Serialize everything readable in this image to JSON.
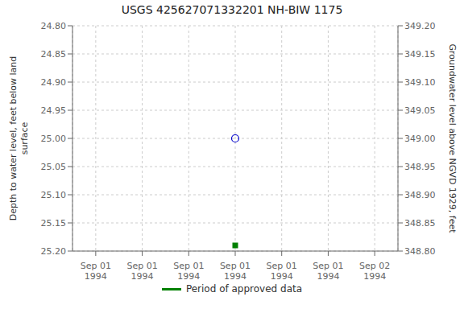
{
  "chart_data": {
    "type": "scatter",
    "title": "USGS 425627071332201 NH-BIW 1175",
    "y_label": "Depth to water level, feet below land\nsurface",
    "y2_label": "Groundwater level above NGVD 1929, feet",
    "categories": [
      "Sep 01\n1994",
      "Sep 01\n1994",
      "Sep 01\n1994",
      "Sep 01\n1994",
      "Sep 01\n1994",
      "Sep 01\n1994",
      "Sep 02\n1994"
    ],
    "xlim": [
      -0.5,
      6.5
    ],
    "ylim": [
      25.2,
      24.8
    ],
    "yticks": [
      {
        "value": 24.8,
        "label": "24.80"
      },
      24.85,
      {
        "value": 24.9,
        "label": "24.90"
      },
      24.95,
      {
        "value": 25.0,
        "label": "25.00"
      },
      25.05,
      {
        "value": 25.1,
        "label": "25.10"
      },
      25.15,
      {
        "value": 25.2,
        "label": "25.20"
      }
    ],
    "y2lim": [
      348.8,
      349.2
    ],
    "y2ticks": [
      {
        "value": 349.2,
        "label": "349.20"
      },
      349.15,
      {
        "value": 349.1,
        "label": "349.10"
      },
      349.05,
      {
        "value": 349.0,
        "label": "349.00"
      },
      348.95,
      {
        "value": 348.9,
        "label": "348.90"
      },
      348.85,
      {
        "value": 348.8,
        "label": "348.80"
      }
    ],
    "series": [
      {
        "color": "#0000cc",
        "marker": "open_circle",
        "values": [
          null,
          null,
          null,
          25.0,
          null,
          null,
          null
        ]
      },
      {
        "name": "Period of approved data",
        "color": "#008000",
        "marker": "square",
        "values": [
          null,
          null,
          null,
          25.19,
          null,
          null,
          null
        ]
      }
    ],
    "grid": true,
    "legend": "bottom"
  }
}
